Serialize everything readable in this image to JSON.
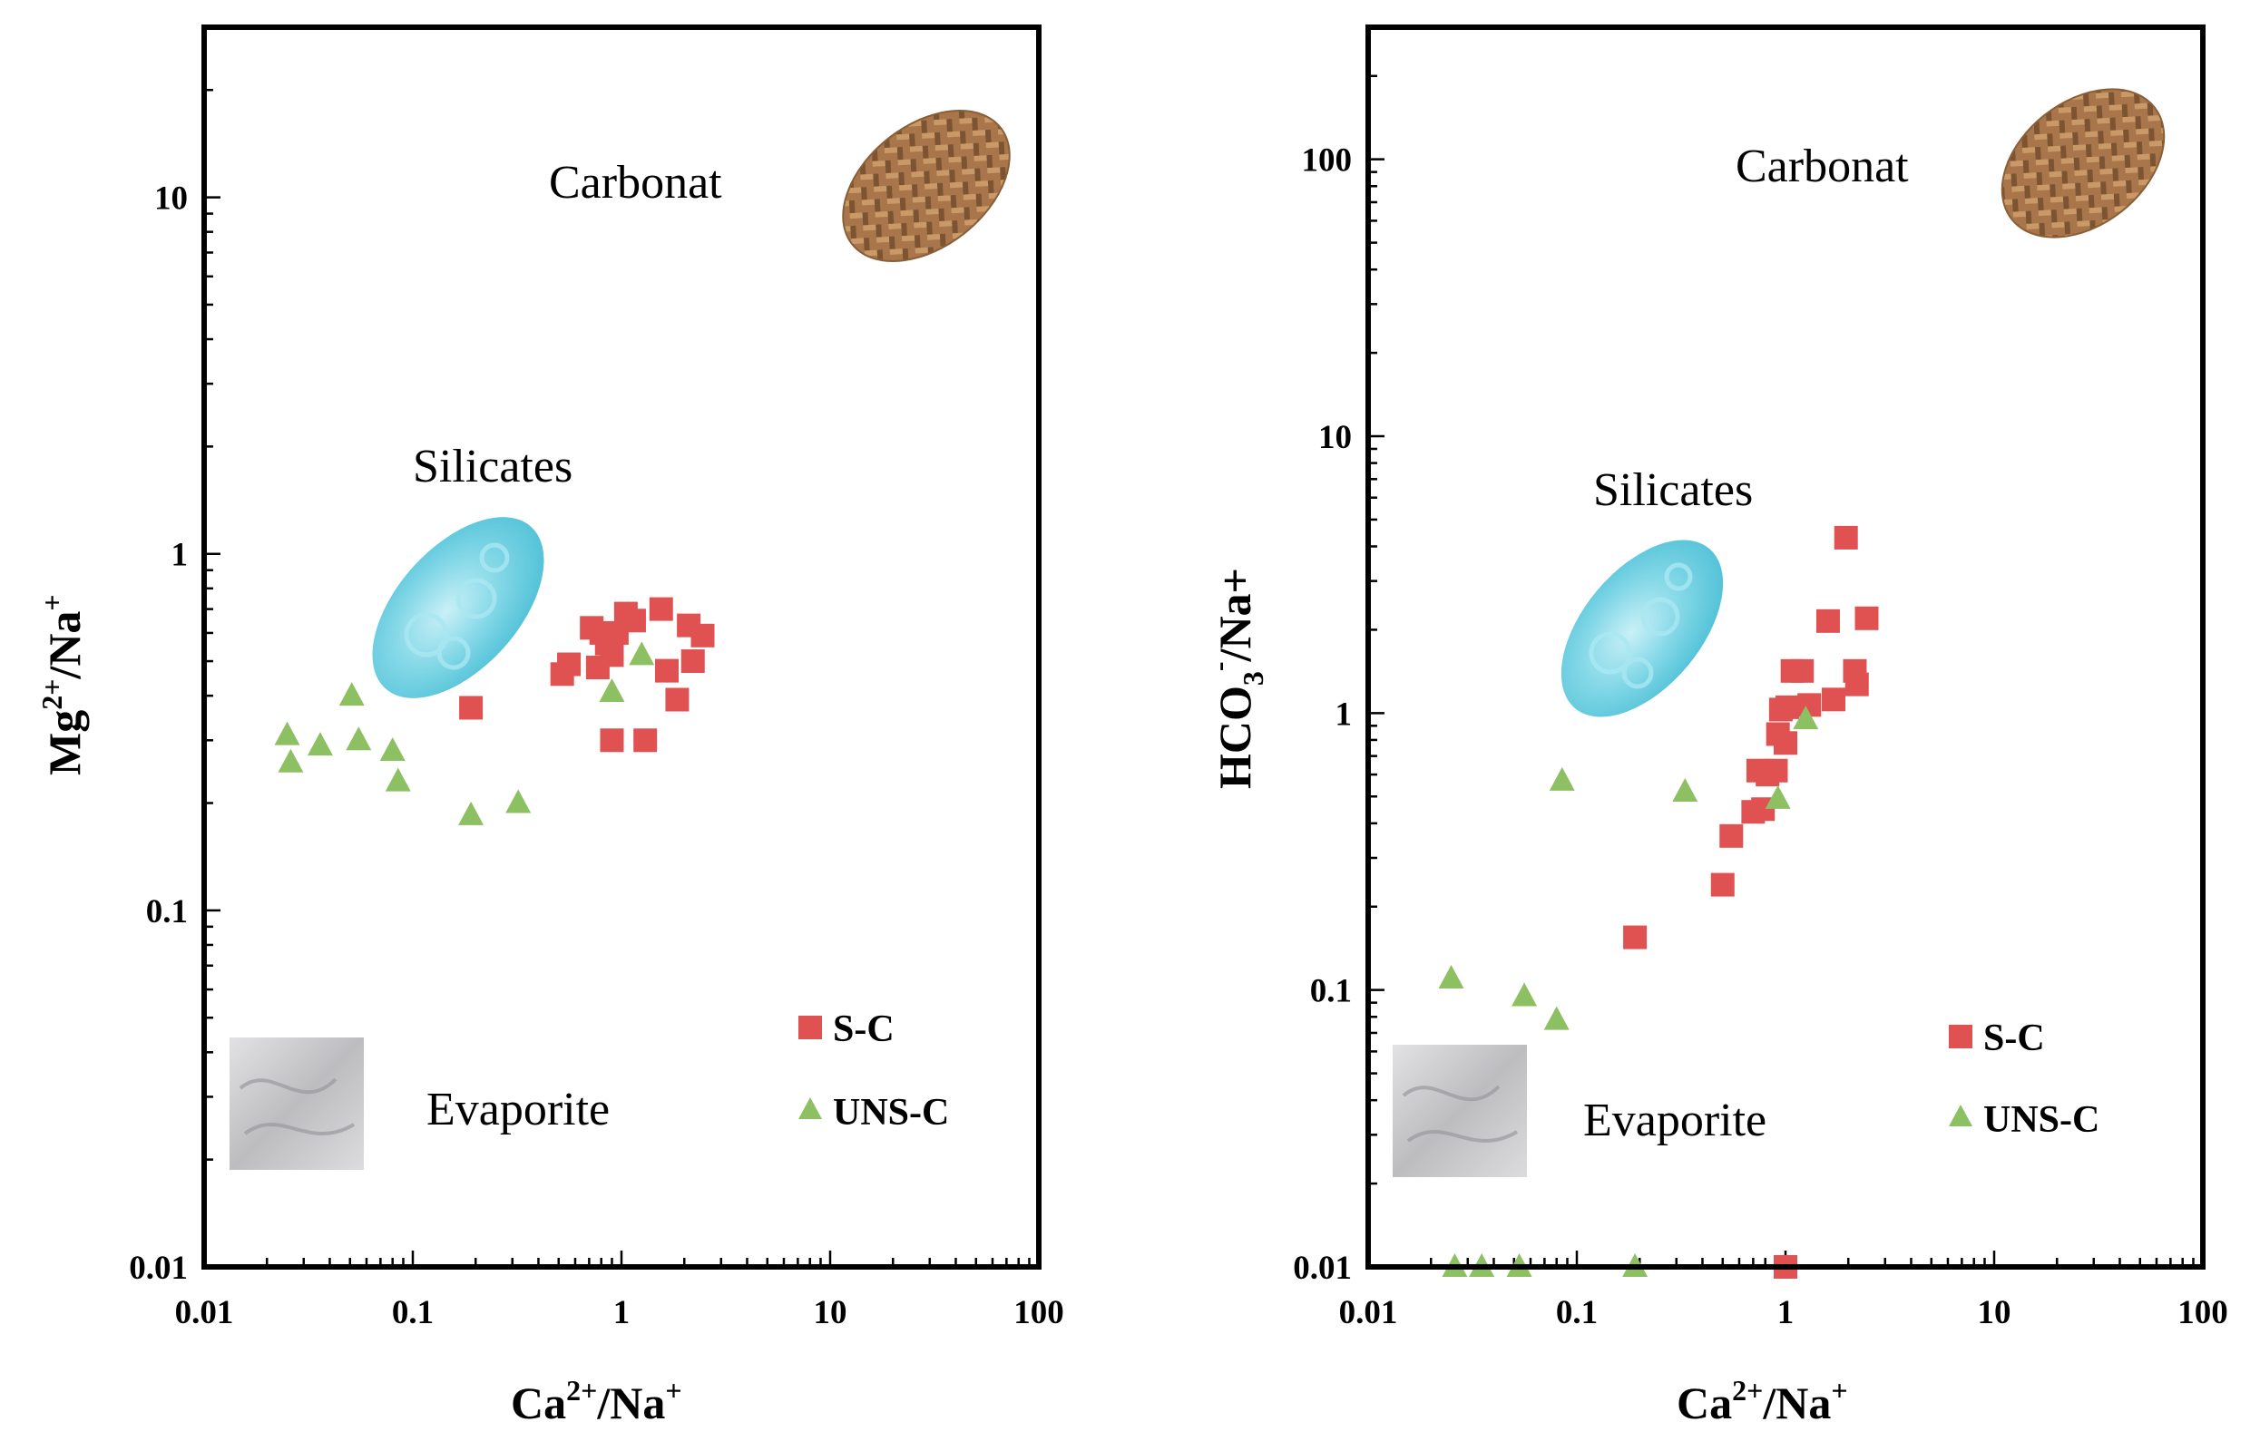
{
  "legend": {
    "sc": "S-C",
    "unsc": "UNS-C"
  },
  "regions": {
    "carbonate": "Carbonat",
    "silicates": "Silicates",
    "evaporite": "Evaporite"
  },
  "colors": {
    "sc": "#e05252",
    "unsc": "#8dc063",
    "silicate_fill": "#7fd6e6",
    "carbonate_fill": "#a8764a",
    "evaporite_fill": "#c7c7c9"
  },
  "chart_data": [
    {
      "type": "scatter",
      "x_scale": "log",
      "y_scale": "log",
      "xlim": [
        0.01,
        100
      ],
      "ylim": [
        0.01,
        30
      ],
      "xticks": [
        "0.01",
        "0.1",
        "1",
        "10",
        "100"
      ],
      "yticks": [
        "0.01",
        "0.1",
        "1",
        "10"
      ],
      "xlabel": {
        "base": "Ca",
        "sup": "2+",
        "rest": "/Na",
        "sup2": "+"
      },
      "ylabel": {
        "base": "Mg",
        "sup": "2+",
        "rest": "/Na",
        "sup2": "+"
      },
      "legend_position": "bottom-right",
      "series": [
        {
          "name": "S-C",
          "marker": "square",
          "points": [
            [
              0.19,
              0.37
            ],
            [
              0.52,
              0.46
            ],
            [
              0.56,
              0.49
            ],
            [
              0.72,
              0.62
            ],
            [
              0.77,
              0.48
            ],
            [
              0.8,
              0.6
            ],
            [
              0.85,
              0.56
            ],
            [
              0.9,
              0.52
            ],
            [
              0.95,
              0.6
            ],
            [
              1.05,
              0.68
            ],
            [
              1.15,
              0.65
            ],
            [
              1.55,
              0.7
            ],
            [
              1.65,
              0.47
            ],
            [
              1.85,
              0.39
            ],
            [
              2.1,
              0.63
            ],
            [
              2.2,
              0.5
            ],
            [
              2.45,
              0.59
            ],
            [
              0.9,
              0.3
            ],
            [
              1.3,
              0.3
            ]
          ]
        },
        {
          "name": "UNS-C",
          "marker": "triangle",
          "points": [
            [
              0.025,
              0.31
            ],
            [
              0.026,
              0.26
            ],
            [
              0.036,
              0.29
            ],
            [
              0.051,
              0.4
            ],
            [
              0.055,
              0.3
            ],
            [
              0.08,
              0.28
            ],
            [
              0.085,
              0.23
            ],
            [
              0.19,
              0.185
            ],
            [
              0.32,
              0.2
            ],
            [
              0.9,
              0.41
            ],
            [
              1.25,
              0.52
            ]
          ]
        }
      ]
    },
    {
      "type": "scatter",
      "x_scale": "log",
      "y_scale": "log",
      "xlim": [
        0.01,
        100
      ],
      "ylim": [
        0.01,
        300
      ],
      "xticks": [
        "0.01",
        "0.1",
        "1",
        "10",
        "100"
      ],
      "yticks": [
        "0.01",
        "0.1",
        "1",
        "10",
        "100"
      ],
      "xlabel": {
        "base": "Ca",
        "sup": "2+",
        "rest": "/Na",
        "sup2": "+"
      },
      "ylabel": {
        "base": "HCO",
        "sub": "3",
        "sup": "-",
        "rest": "/Na+"
      },
      "legend_position": "bottom-right",
      "series": [
        {
          "name": "S-C",
          "marker": "square",
          "points": [
            [
              1.0,
              0.01
            ],
            [
              0.19,
              0.155
            ],
            [
              0.5,
              0.24
            ],
            [
              0.55,
              0.36
            ],
            [
              0.7,
              0.44
            ],
            [
              0.74,
              0.62
            ],
            [
              0.78,
              0.45
            ],
            [
              0.82,
              0.6
            ],
            [
              0.9,
              0.62
            ],
            [
              0.92,
              0.84
            ],
            [
              0.95,
              1.03
            ],
            [
              1.0,
              0.78
            ],
            [
              1.02,
              1.05
            ],
            [
              1.08,
              1.42
            ],
            [
              1.2,
              1.42
            ],
            [
              1.3,
              1.07
            ],
            [
              1.6,
              2.15
            ],
            [
              1.7,
              1.12
            ],
            [
              1.95,
              4.3
            ],
            [
              2.15,
              1.42
            ],
            [
              2.2,
              1.27
            ],
            [
              2.45,
              2.2
            ]
          ]
        },
        {
          "name": "UNS-C",
          "marker": "triangle",
          "points": [
            [
              0.026,
              0.01
            ],
            [
              0.035,
              0.01
            ],
            [
              0.053,
              0.01
            ],
            [
              0.19,
              0.01
            ],
            [
              0.025,
              0.11
            ],
            [
              0.056,
              0.095
            ],
            [
              0.08,
              0.078
            ],
            [
              0.085,
              0.57
            ],
            [
              0.33,
              0.52
            ],
            [
              0.92,
              0.49
            ],
            [
              1.25,
              0.95
            ]
          ]
        }
      ]
    }
  ]
}
